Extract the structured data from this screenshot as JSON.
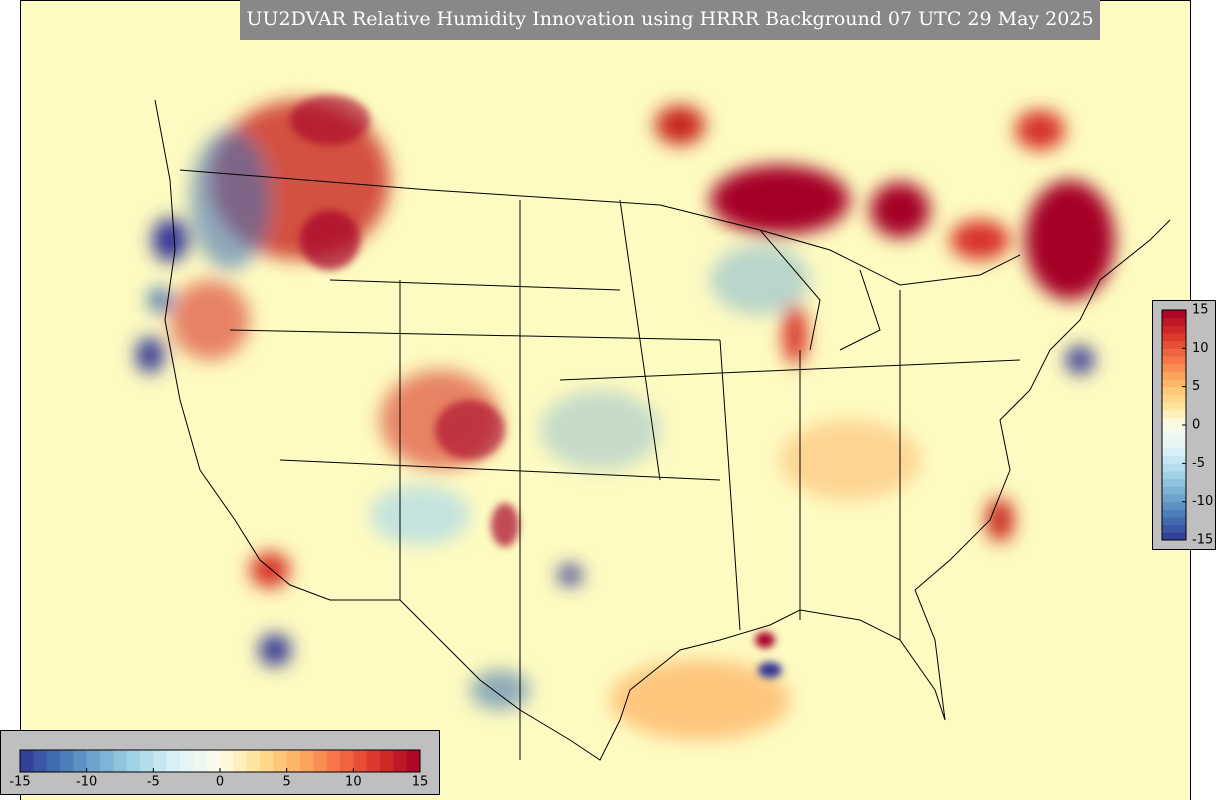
{
  "title": "UU2DVAR Relative Humidity Innovation using HRRR Background 07 UTC 29 May 2025",
  "colorbars": [
    {
      "orientation": "horizontal",
      "range": [
        -15,
        15
      ],
      "ticks": [
        -15,
        -10,
        -5,
        0,
        5,
        10,
        15
      ]
    },
    {
      "orientation": "vertical",
      "range": [
        -15,
        15
      ],
      "ticks": [
        -15,
        -10,
        -5,
        0,
        5,
        10,
        15
      ]
    }
  ]
}
